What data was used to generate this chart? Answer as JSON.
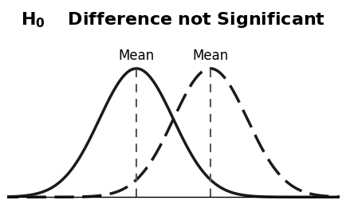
{
  "mean1": -1.0,
  "mean2": 1.0,
  "std": 1.0,
  "mean_label": "Mean",
  "curve_color": "#1a1a1a",
  "vline_color": "#555555",
  "bg_color": "#ffffff",
  "xlim": [
    -4.5,
    4.5
  ],
  "ylim": [
    -0.02,
    0.48
  ],
  "title_fontsize": 16,
  "mean_label_fontsize": 12,
  "linewidth_solid": 2.5,
  "linewidth_dashed": 2.5,
  "vline_linewidth": 1.5,
  "dashes_curve2": [
    7,
    3
  ],
  "dashes_vline": [
    5,
    4
  ]
}
